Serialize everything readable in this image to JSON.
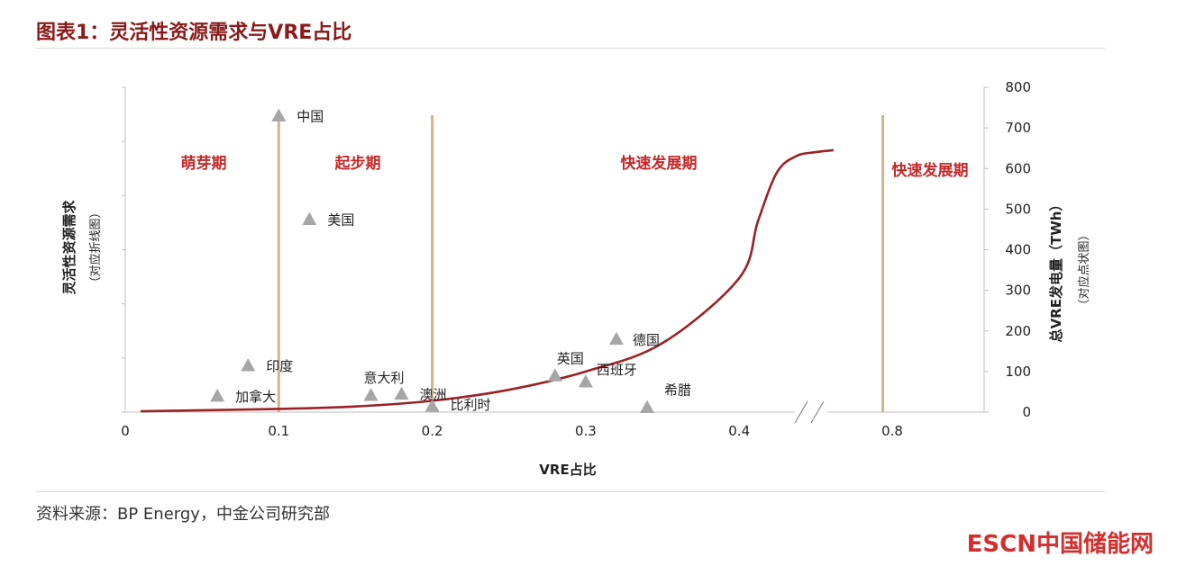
{
  "header": {
    "title": "图表1：灵活性资源需求与VRE占比"
  },
  "footer": {
    "source": "资料来源：BP Energy，中金公司研究部",
    "brand": "ESCN中国储能网"
  },
  "chart_data": {
    "type": "scatter",
    "xlabel": "VRE占比",
    "ylabel_left": "灵活性资源需求",
    "ylabel_left_sub": "（对应折线图）",
    "ylabel_right": "总VRE发电量（TWh）",
    "ylabel_right_sub": "（对应点状图）",
    "x_ticks": [
      "0",
      "0.1",
      "0.2",
      "0.3",
      "0.4",
      "0.8"
    ],
    "x_axis_break": "between 0.4 and 0.8",
    "y_right_ticks": [
      "0",
      "100",
      "200",
      "300",
      "400",
      "500",
      "600",
      "700",
      "800"
    ],
    "ylim_right": [
      0,
      800
    ],
    "phases": [
      "萌芽期",
      "起步期",
      "快速发展期",
      "快速发展期"
    ],
    "phase_boundaries_x": [
      0.1,
      0.2,
      0.78
    ],
    "points": [
      {
        "name": "加拿大",
        "x": 0.06,
        "y": 40
      },
      {
        "name": "印度",
        "x": 0.08,
        "y": 115
      },
      {
        "name": "中国",
        "x": 0.1,
        "y": 730
      },
      {
        "name": "美国",
        "x": 0.12,
        "y": 475
      },
      {
        "name": "意大利",
        "x": 0.16,
        "y": 42
      },
      {
        "name": "澳洲",
        "x": 0.18,
        "y": 45
      },
      {
        "name": "比利时",
        "x": 0.2,
        "y": 15
      },
      {
        "name": "英国",
        "x": 0.28,
        "y": 90
      },
      {
        "name": "西班牙",
        "x": 0.3,
        "y": 75
      },
      {
        "name": "德国",
        "x": 0.32,
        "y": 180
      },
      {
        "name": "希腊",
        "x": 0.34,
        "y": 12
      }
    ],
    "curve": {
      "x": [
        0.01,
        0.1,
        0.15,
        0.2,
        0.25,
        0.3,
        0.35,
        0.4,
        0.45,
        0.5,
        0.55,
        0.6,
        0.65
      ],
      "y": [
        2,
        8,
        14,
        28,
        55,
        100,
        170,
        330,
        470,
        590,
        630,
        640,
        645
      ]
    },
    "colors": {
      "curve": "#9b2226",
      "phase_line": "#d2b48c",
      "point": "#a6a6a6",
      "phase_text": "#c62828"
    }
  }
}
